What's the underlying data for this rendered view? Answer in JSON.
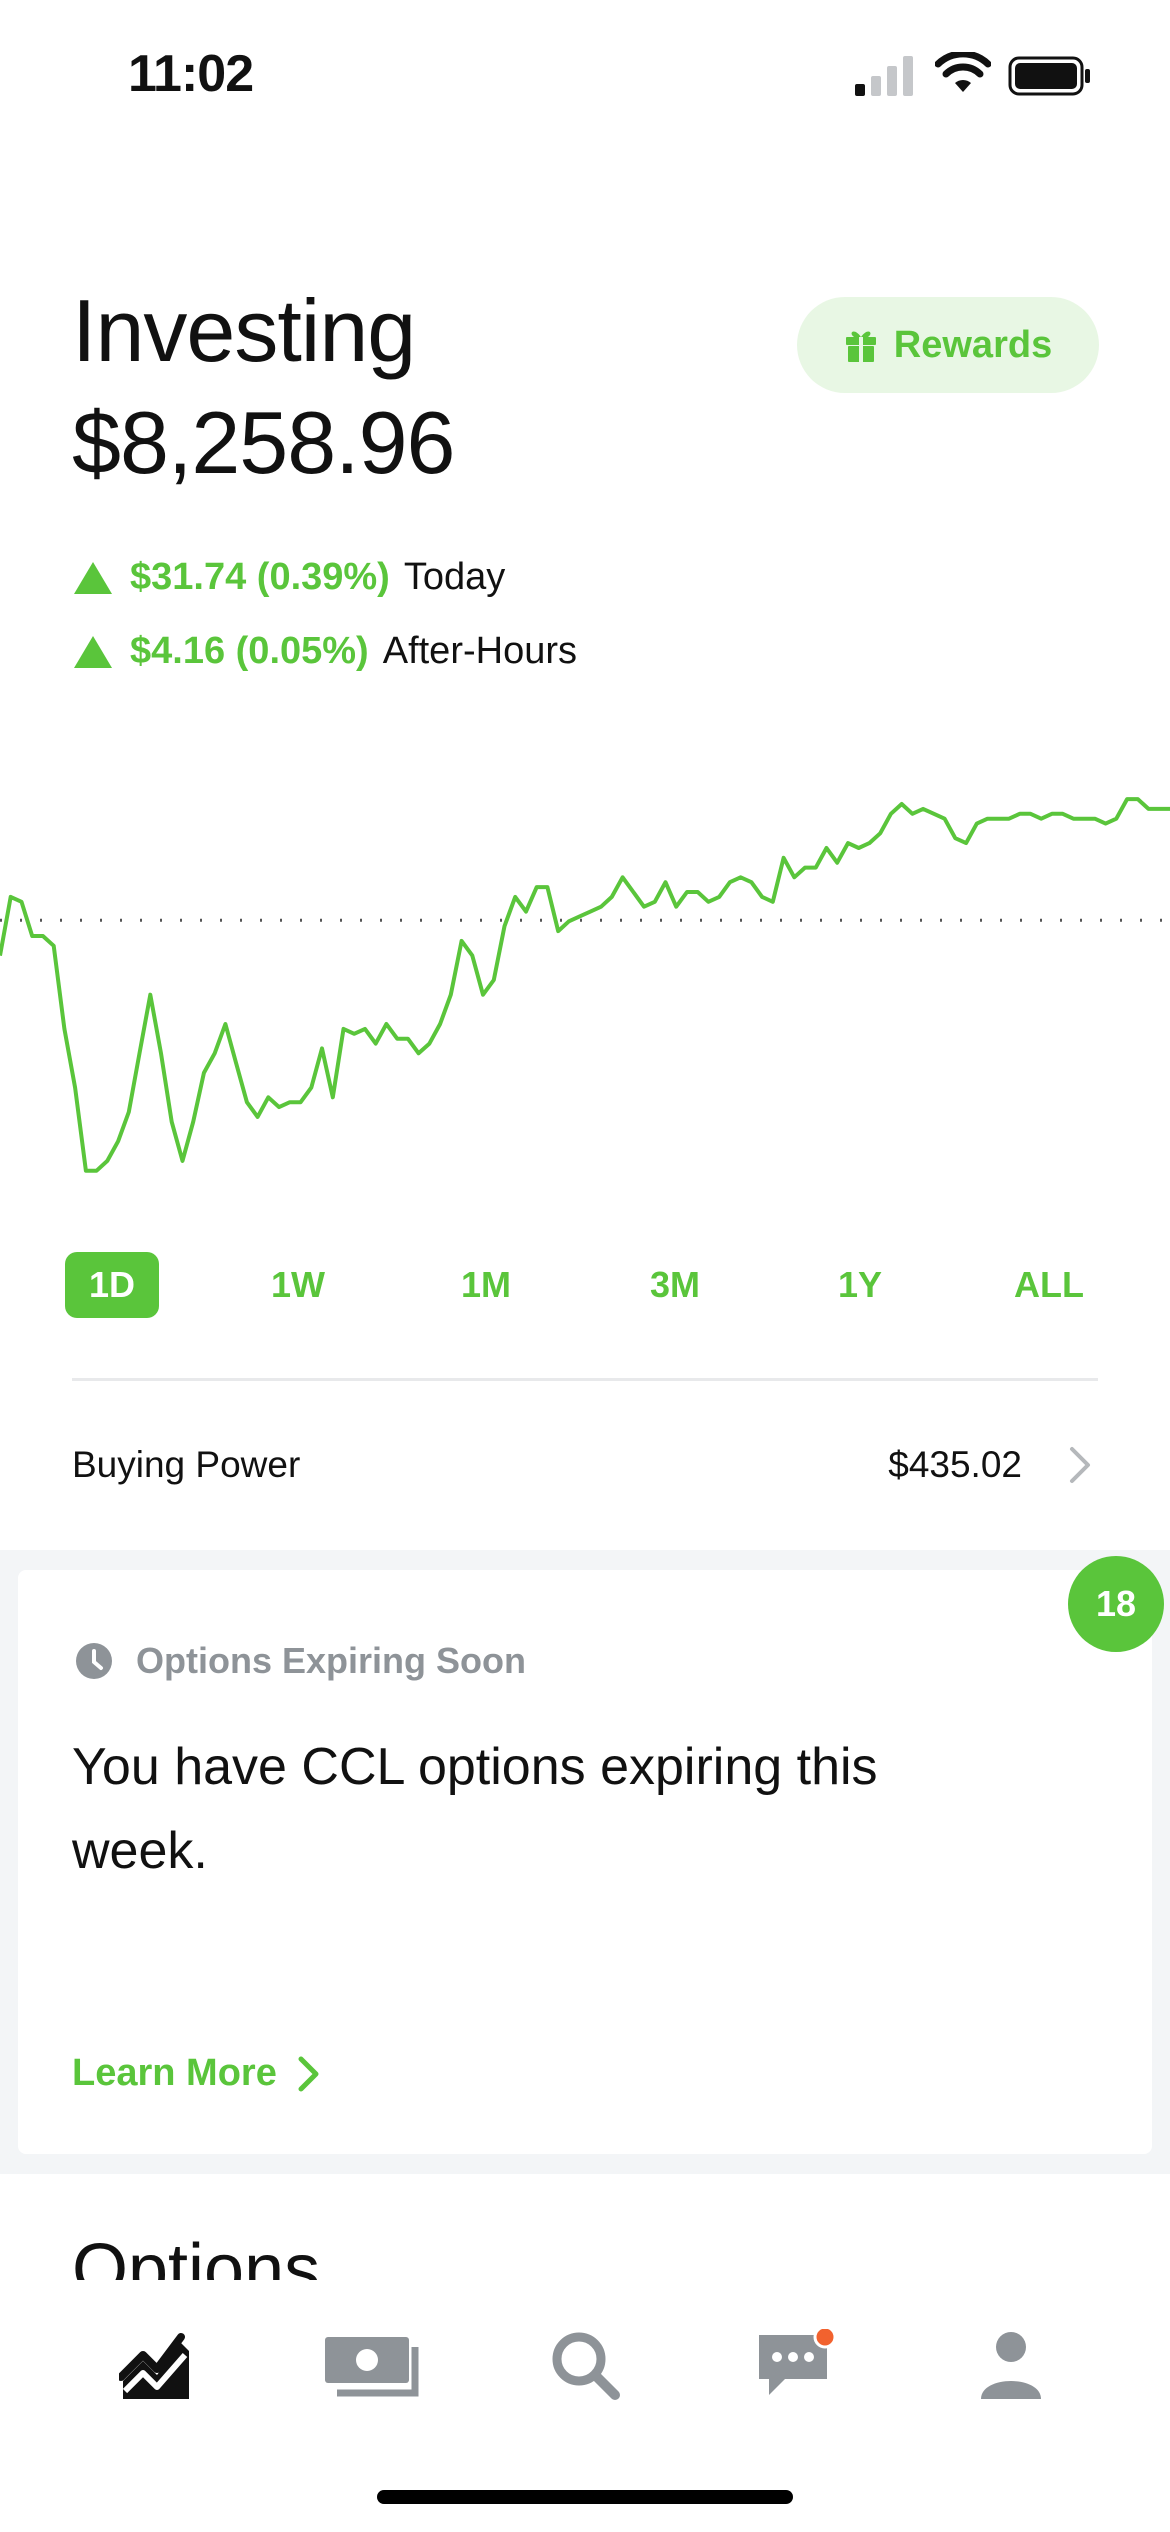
{
  "status_bar": {
    "time": "11:02"
  },
  "header": {
    "title": "Investing",
    "portfolio_value": "$8,258.96",
    "rewards_label": "Rewards"
  },
  "changes": {
    "today": {
      "amount": "$31.74 (0.39%)",
      "label": "Today"
    },
    "after_hours": {
      "amount": "$4.16 (0.05%)",
      "label": "After-Hours"
    }
  },
  "chart_data": {
    "type": "line",
    "series": [
      {
        "values": [
          8220.0,
          8232.0,
          8231.0,
          8224.0,
          8224.0,
          8222.0,
          8205.0,
          8193.0,
          8176.0,
          8176.0,
          8178.0,
          8182.0,
          8188.0,
          8200.0,
          8212.0,
          8200.0,
          8186.0,
          8178.0,
          8186.0,
          8196.0,
          8200.0,
          8206.0,
          8198.0,
          8190.0,
          8187.0,
          8191.0,
          8189.0,
          8190.0,
          8190.0,
          8193.0,
          8201.0,
          8191.0,
          8205.0,
          8204.0,
          8205.0,
          8202.0,
          8206.0,
          8203.0,
          8203.0,
          8200.0,
          8202.0,
          8206.0,
          8212.0,
          8223.0,
          8220.0,
          8212.0,
          8215.0,
          8226.0,
          8232.0,
          8229.0,
          8234.0,
          8234.0,
          8225.0,
          8227.0,
          8228.0,
          8229.0,
          8230.0,
          8232.0,
          8236.0,
          8233.0,
          8230.0,
          8231.0,
          8235.0,
          8230.0,
          8233.0,
          8233.0,
          8231.0,
          8232.0,
          8235.0,
          8236.0,
          8235.0,
          8232.0,
          8231.0,
          8240.0,
          8236.0,
          8238.0,
          8238.0,
          8242.0,
          8239.0,
          8243.0,
          8242.0,
          8243.0,
          8245.0,
          8249.0,
          8251.0,
          8249.0,
          8250.0,
          8249.0,
          8248.0,
          8244.0,
          8243.0,
          8247.0,
          8248.0,
          8248.0,
          8248.0,
          8249.0,
          8249.0,
          8248.0,
          8249.0,
          8249.0,
          8248.0,
          8248.0,
          8248.0,
          8247.0,
          8248.0,
          8252.0,
          8252.0,
          8250.0,
          8250.0,
          8250.0
        ]
      }
    ],
    "reference_value": 8227.22,
    "ylim": [
      8170,
      8260
    ],
    "grid": false
  },
  "range_tabs": [
    "1D",
    "1W",
    "1M",
    "3M",
    "1Y",
    "ALL"
  ],
  "active_range": "1D",
  "buying_power": {
    "label": "Buying Power",
    "value": "$435.02"
  },
  "card": {
    "badge": "18",
    "kicker": "Options Expiring Soon",
    "body": "You have CCL options expiring this week.",
    "action": "Learn More"
  },
  "section": {
    "heading": "Options"
  },
  "colors": {
    "accent": "#5ac53b",
    "accent_light": "#e8f7e4",
    "muted": "#8e9398",
    "notification": "#f2622e"
  },
  "tab_bar": {
    "items": [
      "chart-icon",
      "cash-icon",
      "search-icon",
      "messages-icon",
      "account-icon"
    ]
  }
}
